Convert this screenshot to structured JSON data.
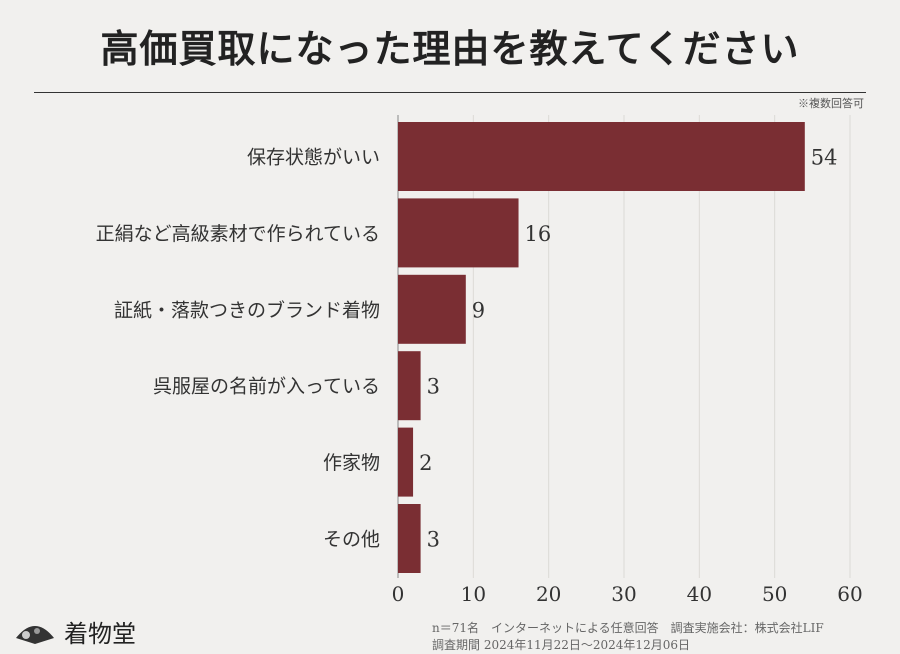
{
  "title": "高価買取になった理由を教えてください",
  "note": "※複数回答可",
  "chart_data": {
    "type": "bar",
    "orientation": "horizontal",
    "categories": [
      "保存状態がいい",
      "正絹など高級素材で作られている",
      "証紙・落款つきのブランド着物",
      "呉服屋の名前が入っている",
      "作家物",
      "その他"
    ],
    "values": [
      54,
      16,
      9,
      3,
      2,
      3
    ],
    "xlim": [
      0,
      60
    ],
    "xticks": [
      0,
      10,
      20,
      30,
      40,
      50,
      60
    ],
    "grid": true,
    "bar_color": "#7a2e33"
  },
  "logo": {
    "name": "着物堂"
  },
  "footer": {
    "line1": "n＝71名　インターネットによる任意回答　調査実施会社：株式会社LIF",
    "line2": "調査期間  2024年11月22日～2024年12月06日"
  }
}
